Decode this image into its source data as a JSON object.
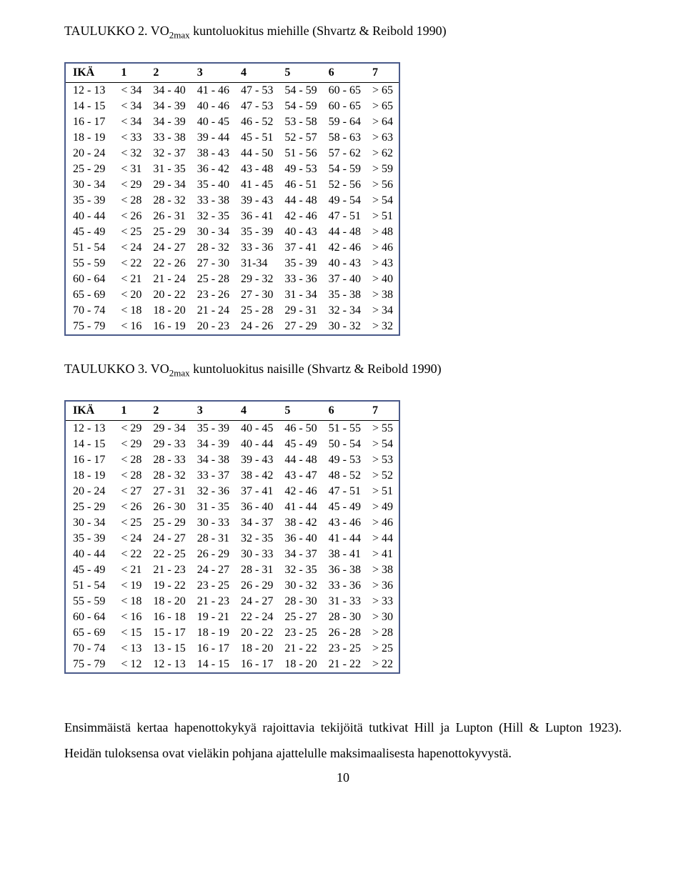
{
  "caption1_prefix": "TAULUKKO 2. VO",
  "caption1_sub": "2max",
  "caption1_rest": " kuntoluokitus miehille (Shvartz & Reibold 1990)",
  "caption2_prefix": "TAULUKKO 3. VO",
  "caption2_sub": "2max",
  "caption2_rest": " kuntoluokitus naisille (Shvartz & Reibold 1990)",
  "table1": {
    "type": "table",
    "border_color": "#4a5a8a",
    "header_border_color": "#000000",
    "background_color": "#ffffff",
    "font_family": "Times New Roman",
    "font_size_pt": 12,
    "header_font_weight": "bold",
    "columns": [
      "IKÄ",
      "1",
      "2",
      "3",
      "4",
      "5",
      "6",
      "7"
    ],
    "rows": [
      [
        "12 - 13",
        "< 34",
        "34 - 40",
        "41 - 46",
        "47 - 53",
        "54 - 59",
        "60 - 65",
        "> 65"
      ],
      [
        "14 - 15",
        "< 34",
        "34 - 39",
        "40 - 46",
        "47 - 53",
        "54 - 59",
        "60 - 65",
        "> 65"
      ],
      [
        "16 - 17",
        "< 34",
        "34 - 39",
        "40 - 45",
        "46 - 52",
        "53 - 58",
        "59 - 64",
        "> 64"
      ],
      [
        "18 - 19",
        "< 33",
        "33 - 38",
        "39 - 44",
        "45 - 51",
        "52 - 57",
        "58 - 63",
        "> 63"
      ],
      [
        "20 - 24",
        "< 32",
        "32 - 37",
        "38 - 43",
        "44 - 50",
        "51 - 56",
        "57 - 62",
        "> 62"
      ],
      [
        "25 - 29",
        "< 31",
        "31 - 35",
        "36 - 42",
        "43 - 48",
        "49 - 53",
        "54 - 59",
        "> 59"
      ],
      [
        "30 - 34",
        "< 29",
        "29 - 34",
        "35 - 40",
        "41 - 45",
        "46 - 51",
        "52 - 56",
        "> 56"
      ],
      [
        "35 - 39",
        "< 28",
        "28 - 32",
        "33 - 38",
        "39 - 43",
        "44 - 48",
        "49 - 54",
        "> 54"
      ],
      [
        "40 - 44",
        "< 26",
        "26 - 31",
        "32 - 35",
        "36 - 41",
        "42 - 46",
        "47 - 51",
        "> 51"
      ],
      [
        "45 - 49",
        "< 25",
        "25 - 29",
        "30 - 34",
        "35 - 39",
        "40 - 43",
        "44 - 48",
        "> 48"
      ],
      [
        "51 - 54",
        "< 24",
        "24 - 27",
        "28 - 32",
        "33 - 36",
        "37 - 41",
        "42 - 46",
        "> 46"
      ],
      [
        "55 - 59",
        "< 22",
        "22 - 26",
        "27 - 30",
        "31-34",
        "35 - 39",
        "40 - 43",
        "> 43"
      ],
      [
        "60 - 64",
        "< 21",
        "21 - 24",
        "25 - 28",
        "29 - 32",
        "33 - 36",
        "37 - 40",
        "> 40"
      ],
      [
        "65 - 69",
        "< 20",
        "20 - 22",
        "23 - 26",
        "27 - 30",
        "31 - 34",
        "35 - 38",
        "> 38"
      ],
      [
        "70 - 74",
        "< 18",
        "18 - 20",
        "21 - 24",
        "25 - 28",
        "29 - 31",
        "32 - 34",
        "> 34"
      ],
      [
        "75 - 79",
        "< 16",
        "16 - 19",
        "20 - 23",
        "24 - 26",
        "27 - 29",
        "30 - 32",
        "> 32"
      ]
    ]
  },
  "table2": {
    "type": "table",
    "border_color": "#4a5a8a",
    "header_border_color": "#000000",
    "background_color": "#ffffff",
    "font_family": "Times New Roman",
    "font_size_pt": 12,
    "header_font_weight": "bold",
    "columns": [
      "IKÄ",
      "1",
      "2",
      "3",
      "4",
      "5",
      "6",
      "7"
    ],
    "rows": [
      [
        "12 - 13",
        "< 29",
        "29 - 34",
        "35 - 39",
        "40 - 45",
        "46 - 50",
        "51 - 55",
        "> 55"
      ],
      [
        "14 - 15",
        "< 29",
        "29 - 33",
        "34 - 39",
        "40 - 44",
        "45 - 49",
        "50 - 54",
        "> 54"
      ],
      [
        "16 - 17",
        "< 28",
        "28 - 33",
        "34 - 38",
        "39 - 43",
        "44 - 48",
        "49 - 53",
        "> 53"
      ],
      [
        "18 - 19",
        "< 28",
        "28 - 32",
        "33 - 37",
        "38 - 42",
        "43 - 47",
        "48 - 52",
        "> 52"
      ],
      [
        "20 - 24",
        "< 27",
        "27 - 31",
        "32 - 36",
        "37 - 41",
        "42 - 46",
        "47 - 51",
        "> 51"
      ],
      [
        "25 - 29",
        "< 26",
        "26 - 30",
        "31 - 35",
        "36 - 40",
        "41 - 44",
        "45 - 49",
        "> 49"
      ],
      [
        "30 - 34",
        "< 25",
        "25 - 29",
        "30 - 33",
        "34 - 37",
        "38 - 42",
        "43 - 46",
        "> 46"
      ],
      [
        "35 - 39",
        "< 24",
        "24 - 27",
        "28 - 31",
        "32 - 35",
        "36 - 40",
        "41 - 44",
        "> 44"
      ],
      [
        "40 - 44",
        "< 22",
        "22 - 25",
        "26 - 29",
        "30 - 33",
        "34 - 37",
        "38 - 41",
        "> 41"
      ],
      [
        "45 - 49",
        "< 21",
        "21 - 23",
        "24 - 27",
        "28 - 31",
        "32 - 35",
        "36 - 38",
        "> 38"
      ],
      [
        "51 - 54",
        "< 19",
        "19 - 22",
        "23 - 25",
        "26 - 29",
        "30 - 32",
        "33 - 36",
        "> 36"
      ],
      [
        "55 - 59",
        "< 18",
        "18 - 20",
        "21 - 23",
        "24 - 27",
        "28 - 30",
        "31 - 33",
        "> 33"
      ],
      [
        "60 - 64",
        "< 16",
        "16 - 18",
        "19 - 21",
        "22 - 24",
        "25 - 27",
        "28 - 30",
        "> 30"
      ],
      [
        "65 - 69",
        "< 15",
        "15 - 17",
        "18 - 19",
        "20 - 22",
        "23 - 25",
        "26 - 28",
        "> 28"
      ],
      [
        "70 - 74",
        "< 13",
        "13 - 15",
        "16 - 17",
        "18 - 20",
        "21 - 22",
        "23 - 25",
        "> 25"
      ],
      [
        "75 - 79",
        "< 12",
        "12 - 13",
        "14 - 15",
        "16 - 17",
        "18 - 20",
        "21 - 22",
        "> 22"
      ]
    ]
  },
  "body_paragraph": "Ensimmäistä kertaa hapenottokykyä rajoittavia tekijöitä tutkivat Hill ja Lupton (Hill & Lupton 1923). Heidän tuloksensa ovat vieläkin pohjana ajattelulle maksimaalisesta hapenottokyvystä.",
  "page_number": "10"
}
